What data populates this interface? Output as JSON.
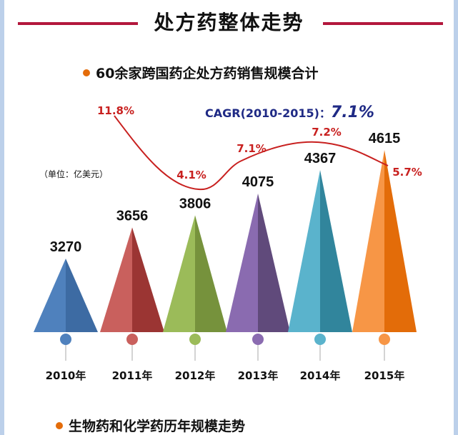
{
  "header": {
    "title": "处方药整体走势",
    "line_color": "#b3173c"
  },
  "subtitle": "60余家跨国药企处方药销售规模合计",
  "cagr": {
    "label": "CAGR(2010-2015)：",
    "value": "7.1%"
  },
  "unit_note": "（单位：亿美元）",
  "next_section": "生物药和化学药历年规模走势",
  "chart_data": {
    "type": "bar",
    "bar_shape": "triangle",
    "categories": [
      "2010年",
      "2011年",
      "2012年",
      "2013年",
      "2014年",
      "2015年"
    ],
    "values": [
      3270,
      3656,
      3806,
      4075,
      4367,
      4615
    ],
    "value_labels": [
      "3270",
      "3656",
      "3806",
      "4075",
      "4367",
      "4615"
    ],
    "colors": [
      [
        "#4f81bd",
        "#3d6ba3"
      ],
      [
        "#c9605d",
        "#9b3533"
      ],
      [
        "#9bbb59",
        "#76923c"
      ],
      [
        "#8a6bb0",
        "#604a7b"
      ],
      [
        "#5ab3cc",
        "#31859c"
      ],
      [
        "#f79646",
        "#e36c09"
      ]
    ],
    "growth_line": {
      "type": "line",
      "color": "#c8201f",
      "categories": [
        "2011年",
        "2012年",
        "2013年",
        "2014年",
        "2015年"
      ],
      "values": [
        11.8,
        4.1,
        7.1,
        7.2,
        5.7
      ],
      "labels": [
        "11.8%",
        "4.1%",
        "7.1%",
        "7.2%",
        "5.7%"
      ]
    },
    "unit": "亿美元"
  }
}
